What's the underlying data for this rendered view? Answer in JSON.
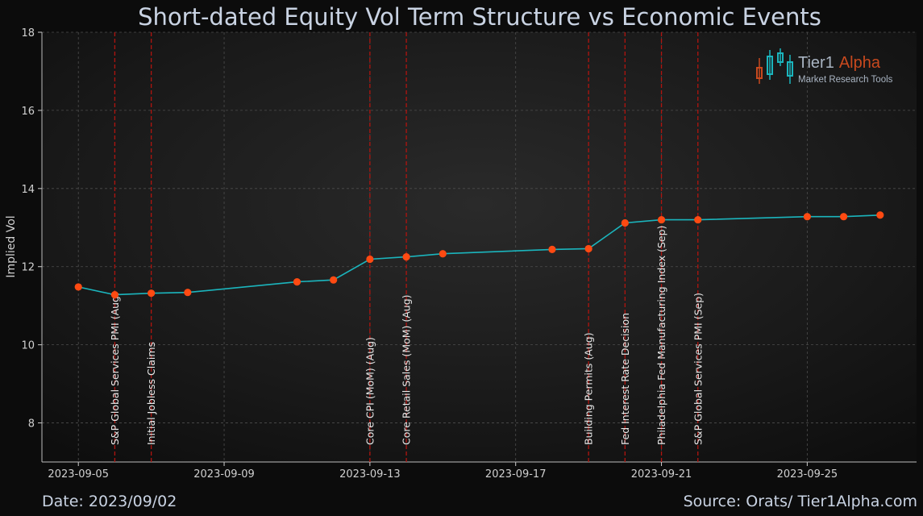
{
  "chart_data": {
    "type": "line",
    "title": "Short-dated Equity Vol Term Structure vs Economic Events",
    "ylabel": "Implied Vol",
    "xlabel": "",
    "ylim": [
      7,
      18
    ],
    "xlim": [
      "2023-09-04",
      "2023-09-28"
    ],
    "yticks": [
      8,
      10,
      12,
      14,
      16,
      18
    ],
    "xticks": [
      "2023-09-05",
      "2023-09-09",
      "2023-09-13",
      "2023-09-17",
      "2023-09-21",
      "2023-09-25"
    ],
    "grid": true,
    "series": [
      {
        "color": "#1bb5bd",
        "marker_color": "#ff4a12",
        "points": [
          {
            "x": "2023-09-05",
            "y": 11.48
          },
          {
            "x": "2023-09-06",
            "y": 11.28
          },
          {
            "x": "2023-09-07",
            "y": 11.32
          },
          {
            "x": "2023-09-08",
            "y": 11.34
          },
          {
            "x": "2023-09-11",
            "y": 11.61
          },
          {
            "x": "2023-09-12",
            "y": 11.66
          },
          {
            "x": "2023-09-13",
            "y": 12.19
          },
          {
            "x": "2023-09-14",
            "y": 12.25
          },
          {
            "x": "2023-09-15",
            "y": 12.33
          },
          {
            "x": "2023-09-18",
            "y": 12.44
          },
          {
            "x": "2023-09-19",
            "y": 12.46
          },
          {
            "x": "2023-09-20",
            "y": 13.12
          },
          {
            "x": "2023-09-21",
            "y": 13.2
          },
          {
            "x": "2023-09-22",
            "y": 13.2
          },
          {
            "x": "2023-09-25",
            "y": 13.28
          },
          {
            "x": "2023-09-26",
            "y": 13.28
          },
          {
            "x": "2023-09-27",
            "y": 13.32
          }
        ]
      }
    ],
    "events": [
      {
        "x": "2023-09-06",
        "label": "S&P Global Services PMI  (Aug)",
        "top": "11.0"
      },
      {
        "x": "2023-09-07",
        "label": "Initial Jobless Claims",
        "top": "9.7"
      },
      {
        "x": "2023-09-13",
        "label": "Core CPI (MoM)  (Aug)",
        "top": "10.4"
      },
      {
        "x": "2023-09-14",
        "label": "Core Retail Sales (MoM)  (Aug)",
        "top": "11.6"
      },
      {
        "x": "2023-09-19",
        "label": "Building Permits  (Aug)",
        "top": "10.5"
      },
      {
        "x": "2023-09-20",
        "label": "Fed Interest Rate Decision",
        "top": "11.0"
      },
      {
        "x": "2023-09-21",
        "label": "Philadelphia Fed Manufacturing Index  (Sep)",
        "top": "13.3"
      },
      {
        "x": "2023-09-22",
        "label": "S&P Global Services PMI  (Sep)",
        "top": "11.6"
      }
    ],
    "event_line_color": "#b0140f"
  },
  "logo": {
    "name_main": "Tier1",
    "name_accent": "Alpha",
    "tagline": "Market  Research Tools"
  },
  "footer": {
    "date": "Date: 2023/09/02",
    "source": "Source: Orats/ Tier1Alpha.com"
  }
}
